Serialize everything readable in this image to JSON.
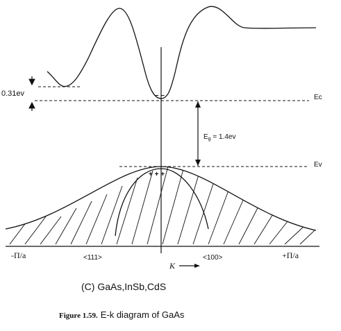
{
  "labels": {
    "split_energy": "0.31ev",
    "ec": "Ec",
    "ev": "Ev",
    "gap_prefix": "E",
    "gap_sub": "g",
    "gap_value": " = 1.4ev",
    "electrons": "– –",
    "holes": "+ + +",
    "neg_pi": "-Π/a",
    "pos_pi": "+Π/a",
    "dir_111": "<111>",
    "dir_100": "<100>",
    "k_symbol": "K",
    "subtitle": "(C) GaAs,InSb,CdS",
    "figure_prefix": "Figure 1.59.",
    "figure_title": "E-k diagram of GaAs"
  }
}
